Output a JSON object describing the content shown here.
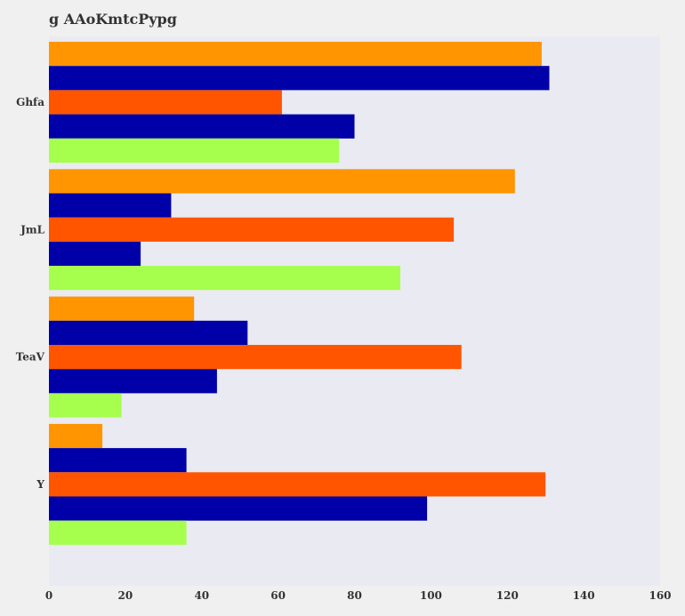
{
  "chart_data": {
    "type": "bar",
    "orientation": "horizontal",
    "title": "g AAoKmtcPypg",
    "xlabel": "",
    "ylabel": "",
    "xlim": [
      0,
      160
    ],
    "xticks": [
      0,
      20,
      40,
      60,
      80,
      100,
      120,
      140,
      160
    ],
    "categories": [
      "Ghfa",
      "JmL",
      "TeaV",
      "Y"
    ],
    "series": [
      {
        "color": "#ff9500",
        "values": [
          129,
          122,
          38,
          14
        ]
      },
      {
        "color": "#0000a8",
        "values": [
          131,
          32,
          52,
          36
        ]
      },
      {
        "color": "#ff5500",
        "values": [
          61,
          106,
          108,
          130
        ]
      },
      {
        "color": "#0000a8",
        "values": [
          80,
          24,
          44,
          99
        ]
      },
      {
        "color": "#a6ff4d",
        "values": [
          76,
          92,
          19,
          36
        ]
      }
    ],
    "grid": false,
    "plot_background": "#eaeaf2",
    "page_background": "#f0f0f0"
  }
}
